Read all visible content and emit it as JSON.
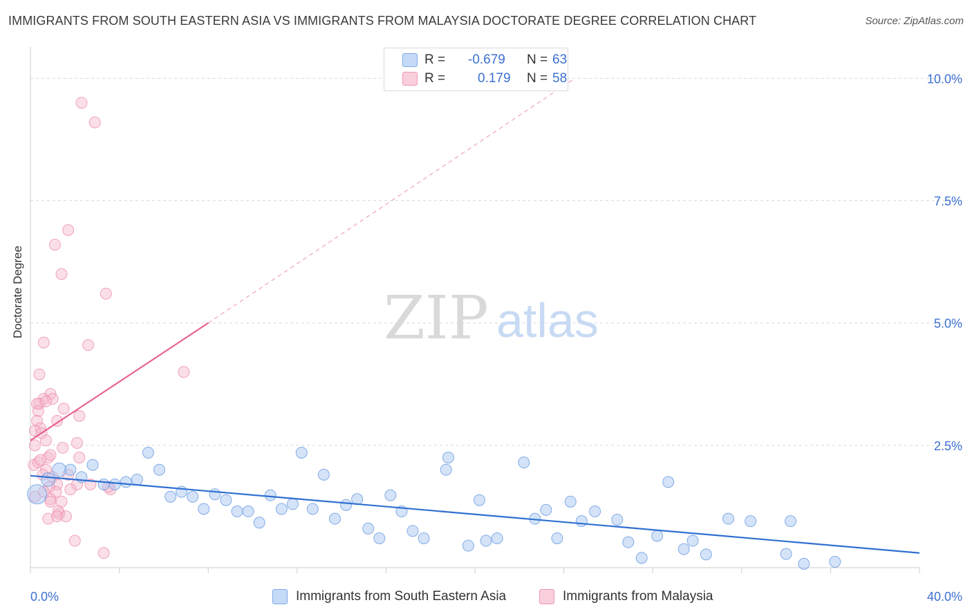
{
  "header": {
    "title": "IMMIGRANTS FROM SOUTH EASTERN ASIA VS IMMIGRANTS FROM MALAYSIA DOCTORATE DEGREE CORRELATION CHART",
    "source": "Source: ZipAtlas.com"
  },
  "watermark": {
    "zip": "ZIP",
    "atlas": "atlas"
  },
  "legend": {
    "r_label": "R =",
    "n_label": "N =",
    "series_a": {
      "r": "-0.679",
      "n": "63",
      "color": "#a9c8f2"
    },
    "series_b": {
      "r": "0.179",
      "n": "58",
      "color": "#f5b8cb"
    }
  },
  "bottom_legend": {
    "series_a": "Immigrants from South Eastern Asia",
    "series_b": "Immigrants from Malaysia"
  },
  "colors": {
    "blue_point": "#a9c8f2",
    "blue_line": "#2f6fd1",
    "pink_point": "#f5b8cb",
    "pink_line": "#e8638f",
    "tick_text": "#3b6fd1",
    "grid": "#d8d8d8"
  },
  "chart_data": {
    "type": "scatter",
    "title": "IMMIGRANTS FROM SOUTH EASTERN ASIA VS IMMIGRANTS FROM MALAYSIA DOCTORATE DEGREE CORRELATION CHART",
    "xlabel": "",
    "ylabel": "Doctorate Degree",
    "xlim": [
      0,
      40
    ],
    "ylim": [
      0,
      10.5
    ],
    "x_tick_labels": [
      "0.0%",
      "40.0%"
    ],
    "y_ticks": [
      2.5,
      5.0,
      7.5,
      10.0
    ],
    "y_tick_labels": [
      "2.5%",
      "5.0%",
      "7.5%",
      "10.0%"
    ],
    "grid": true,
    "series": [
      {
        "name": "Immigrants from South Eastern Asia",
        "r": -0.679,
        "n": 63,
        "trend": {
          "x0": 0,
          "y0": 1.88,
          "x1": 40,
          "y1": 0.3
        },
        "points": [
          [
            0.3,
            1.5
          ],
          [
            0.8,
            1.8
          ],
          [
            1.3,
            2.0
          ],
          [
            1.8,
            2.0
          ],
          [
            2.3,
            1.85
          ],
          [
            2.8,
            2.1
          ],
          [
            3.3,
            1.7
          ],
          [
            3.8,
            1.7
          ],
          [
            4.3,
            1.75
          ],
          [
            4.8,
            1.8
          ],
          [
            5.3,
            2.35
          ],
          [
            5.8,
            2.0
          ],
          [
            6.3,
            1.45
          ],
          [
            6.8,
            1.55
          ],
          [
            7.3,
            1.45
          ],
          [
            7.8,
            1.2
          ],
          [
            8.3,
            1.5
          ],
          [
            8.8,
            1.38
          ],
          [
            9.3,
            1.15
          ],
          [
            9.8,
            1.15
          ],
          [
            10.3,
            0.92
          ],
          [
            10.8,
            1.48
          ],
          [
            11.3,
            1.2
          ],
          [
            11.8,
            1.3
          ],
          [
            12.2,
            2.35
          ],
          [
            12.7,
            1.2
          ],
          [
            13.2,
            1.9
          ],
          [
            13.7,
            1.0
          ],
          [
            14.2,
            1.28
          ],
          [
            14.7,
            1.4
          ],
          [
            15.2,
            0.8
          ],
          [
            15.7,
            0.6
          ],
          [
            16.2,
            1.48
          ],
          [
            16.7,
            1.15
          ],
          [
            17.2,
            0.75
          ],
          [
            17.7,
            0.6
          ],
          [
            18.7,
            2.0
          ],
          [
            18.8,
            2.25
          ],
          [
            19.7,
            0.45
          ],
          [
            20.2,
            1.38
          ],
          [
            20.5,
            0.55
          ],
          [
            21.0,
            0.6
          ],
          [
            22.2,
            2.15
          ],
          [
            22.7,
            1.0
          ],
          [
            23.2,
            1.18
          ],
          [
            23.7,
            0.6
          ],
          [
            24.3,
            1.35
          ],
          [
            24.8,
            0.95
          ],
          [
            25.4,
            1.15
          ],
          [
            26.4,
            0.98
          ],
          [
            26.9,
            0.52
          ],
          [
            27.5,
            0.2
          ],
          [
            28.2,
            0.65
          ],
          [
            28.7,
            1.75
          ],
          [
            29.4,
            0.38
          ],
          [
            29.8,
            0.55
          ],
          [
            30.4,
            0.27
          ],
          [
            31.4,
            1.0
          ],
          [
            32.4,
            0.95
          ],
          [
            34.0,
            0.28
          ],
          [
            34.2,
            0.95
          ],
          [
            34.8,
            0.08
          ],
          [
            36.2,
            0.12
          ]
        ]
      },
      {
        "name": "Immigrants from Malaysia",
        "r": 0.179,
        "n": 58,
        "trend": {
          "x0": 0,
          "y0": 2.6,
          "x1": 8.0,
          "y1": 5.0,
          "ext_x1": 24.5,
          "ext_y1": 10.0
        },
        "points": [
          [
            2.3,
            9.5
          ],
          [
            2.9,
            9.1
          ],
          [
            1.7,
            6.9
          ],
          [
            1.1,
            6.6
          ],
          [
            1.4,
            6.0
          ],
          [
            3.4,
            5.6
          ],
          [
            0.6,
            4.6
          ],
          [
            2.6,
            4.55
          ],
          [
            6.9,
            4.0
          ],
          [
            0.4,
            3.95
          ],
          [
            0.9,
            3.55
          ],
          [
            0.6,
            3.45
          ],
          [
            0.4,
            3.35
          ],
          [
            0.3,
            3.35
          ],
          [
            1.0,
            3.45
          ],
          [
            0.7,
            3.4
          ],
          [
            0.35,
            3.2
          ],
          [
            1.5,
            3.25
          ],
          [
            2.2,
            3.1
          ],
          [
            0.3,
            3.0
          ],
          [
            0.45,
            2.85
          ],
          [
            1.2,
            3.0
          ],
          [
            0.2,
            2.8
          ],
          [
            0.7,
            2.6
          ],
          [
            0.5,
            2.75
          ],
          [
            1.45,
            2.45
          ],
          [
            0.2,
            2.5
          ],
          [
            2.1,
            2.55
          ],
          [
            0.8,
            2.25
          ],
          [
            0.9,
            2.3
          ],
          [
            2.2,
            2.25
          ],
          [
            0.15,
            2.1
          ],
          [
            0.35,
            2.15
          ],
          [
            0.45,
            2.2
          ],
          [
            0.7,
            2.0
          ],
          [
            0.55,
            1.9
          ],
          [
            1.0,
            1.85
          ],
          [
            1.7,
            1.9
          ],
          [
            2.7,
            1.7
          ],
          [
            3.6,
            1.6
          ],
          [
            3.5,
            1.65
          ],
          [
            1.2,
            1.7
          ],
          [
            2.1,
            1.7
          ],
          [
            0.85,
            1.65
          ],
          [
            1.8,
            1.6
          ],
          [
            0.6,
            1.55
          ],
          [
            1.15,
            1.55
          ],
          [
            0.9,
            1.4
          ],
          [
            1.4,
            1.35
          ],
          [
            0.9,
            1.35
          ],
          [
            1.3,
            1.1
          ],
          [
            1.25,
            1.15
          ],
          [
            1.6,
            1.05
          ],
          [
            0.8,
            1.0
          ],
          [
            1.2,
            1.05
          ],
          [
            2.0,
            0.55
          ],
          [
            3.3,
            0.3
          ],
          [
            0.2,
            1.45
          ]
        ]
      }
    ]
  }
}
